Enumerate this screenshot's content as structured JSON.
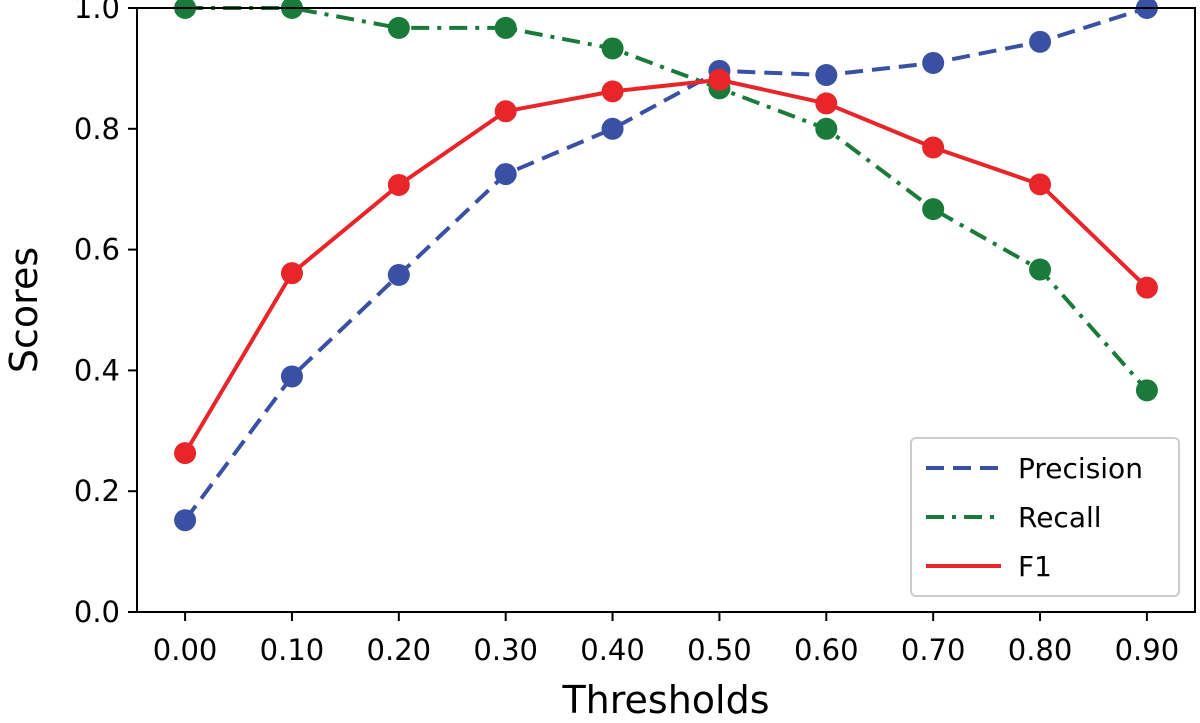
{
  "chart_data": {
    "type": "line",
    "title": "",
    "xlabel": "Thresholds",
    "ylabel": "Scores",
    "x": [
      0.0,
      0.1,
      0.2,
      0.3,
      0.4,
      0.5,
      0.6,
      0.7,
      0.8,
      0.9
    ],
    "x_tick_labels": [
      "0.00",
      "0.10",
      "0.20",
      "0.30",
      "0.40",
      "0.50",
      "0.60",
      "0.70",
      "0.80",
      "0.90"
    ],
    "y_tick_labels": [
      "0.0",
      "0.2",
      "0.4",
      "0.6",
      "0.8",
      "1.0"
    ],
    "y_ticks": [
      0.0,
      0.2,
      0.4,
      0.6,
      0.8,
      1.0
    ],
    "ylim": [
      0.0,
      1.0
    ],
    "xlim": [
      -0.045,
      0.945
    ],
    "grid": false,
    "legend_position": "bottom-right",
    "series": [
      {
        "name": "Precision",
        "color": "#3a51a3",
        "linestyle": "dashed",
        "values": [
          0.152,
          0.39,
          0.558,
          0.725,
          0.8,
          0.896,
          0.889,
          0.909,
          0.944,
          1.0
        ]
      },
      {
        "name": "Recall",
        "color": "#1a7a3a",
        "linestyle": "dashdot",
        "values": [
          1.0,
          1.0,
          0.967,
          0.967,
          0.933,
          0.867,
          0.8,
          0.667,
          0.567,
          0.367
        ]
      },
      {
        "name": "F1",
        "color": "#e8262a",
        "linestyle": "solid",
        "values": [
          0.263,
          0.561,
          0.707,
          0.829,
          0.862,
          0.881,
          0.842,
          0.769,
          0.708,
          0.537
        ]
      }
    ]
  }
}
